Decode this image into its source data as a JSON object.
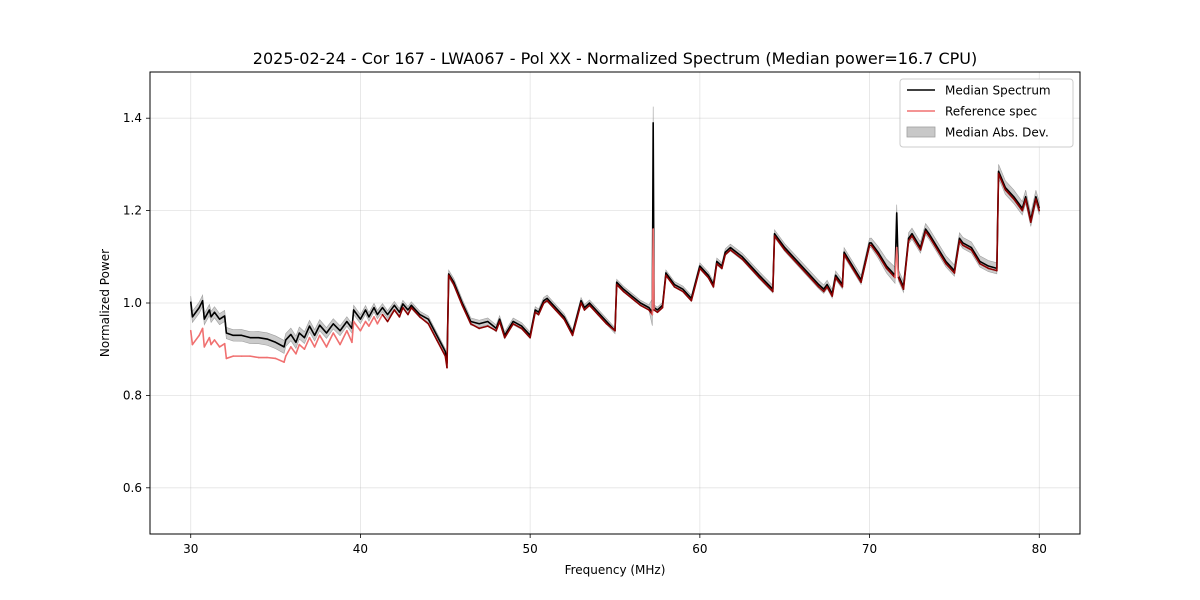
{
  "chart_data": {
    "type": "line",
    "title": "2025-02-24 - Cor 167 - LWA067 - Pol XX - Normalized Spectrum (Median power=16.7 CPU)",
    "xlabel": "Frequency (MHz)",
    "ylabel": "Normalized Power",
    "xlim": [
      27.6,
      82.4
    ],
    "ylim": [
      0.5,
      1.5
    ],
    "xticks": [
      30,
      40,
      50,
      60,
      70,
      80
    ],
    "yticks": [
      0.6,
      0.8,
      1.0,
      1.2,
      1.4
    ],
    "xtick_labels": [
      "30",
      "40",
      "50",
      "60",
      "70",
      "80"
    ],
    "ytick_labels": [
      "0.6",
      "0.8",
      "1.0",
      "1.2",
      "1.4"
    ],
    "grid": true,
    "legend_position": "top-right",
    "legend": [
      "Median Spectrum",
      "Reference spec",
      "Median Abs. Dev."
    ],
    "colors": {
      "median": "#000000",
      "reference": "#f07070",
      "reference_overlap": "#8b0000",
      "mad_band": "#c8c8c8"
    },
    "series": [
      {
        "name": "Median Spectrum",
        "x": [
          30.0,
          30.1,
          30.5,
          30.7,
          30.8,
          31.1,
          31.2,
          31.4,
          31.7,
          32.0,
          32.1,
          32.5,
          33.0,
          33.5,
          34.0,
          34.5,
          35.0,
          35.5,
          35.6,
          35.9,
          36.2,
          36.4,
          36.7,
          37.0,
          37.3,
          37.6,
          38.0,
          38.4,
          38.8,
          39.2,
          39.5,
          39.6,
          40.0,
          40.3,
          40.5,
          40.8,
          41.0,
          41.3,
          41.6,
          42.0,
          42.3,
          42.5,
          42.8,
          43.0,
          43.5,
          44.0,
          44.5,
          45.0,
          45.1,
          45.2,
          45.5,
          46.0,
          46.5,
          47.0,
          47.5,
          48.0,
          48.2,
          48.5,
          49.0,
          49.5,
          50.0,
          50.3,
          50.5,
          50.8,
          51.0,
          51.5,
          52.0,
          52.5,
          53.0,
          53.2,
          53.5,
          54.0,
          54.5,
          55.0,
          55.1,
          55.5,
          56.0,
          56.5,
          57.0,
          57.2,
          57.25,
          57.3,
          57.5,
          57.8,
          58.0,
          58.5,
          59.0,
          59.5,
          60.0,
          60.5,
          60.8,
          61.0,
          61.3,
          61.5,
          61.8,
          62.5,
          63.5,
          64.3,
          64.4,
          65.0,
          66.0,
          67.0,
          67.3,
          67.5,
          67.8,
          68.0,
          68.4,
          68.5,
          69.0,
          69.5,
          70.0,
          70.1,
          70.5,
          71.0,
          71.5,
          71.6,
          71.7,
          72.0,
          72.3,
          72.5,
          73.0,
          73.3,
          73.5,
          74.0,
          74.5,
          75.0,
          75.3,
          75.5,
          76.0,
          76.5,
          77.0,
          77.5,
          77.6,
          78.0,
          78.5,
          79.0,
          79.2,
          79.5,
          79.8,
          80.0
        ],
        "values": [
          1.003,
          0.97,
          0.99,
          1.005,
          0.965,
          0.985,
          0.97,
          0.98,
          0.965,
          0.972,
          0.935,
          0.93,
          0.93,
          0.925,
          0.925,
          0.922,
          0.915,
          0.905,
          0.92,
          0.932,
          0.915,
          0.935,
          0.925,
          0.95,
          0.93,
          0.952,
          0.935,
          0.955,
          0.94,
          0.96,
          0.945,
          0.985,
          0.965,
          0.985,
          0.97,
          0.99,
          0.975,
          0.99,
          0.975,
          0.995,
          0.98,
          0.998,
          0.985,
          0.995,
          0.975,
          0.965,
          0.93,
          0.895,
          0.87,
          1.063,
          1.045,
          1.0,
          0.96,
          0.955,
          0.96,
          0.945,
          0.965,
          0.93,
          0.96,
          0.95,
          0.93,
          0.985,
          0.98,
          1.005,
          1.01,
          0.99,
          0.97,
          0.935,
          1.005,
          0.99,
          1.0,
          0.98,
          0.96,
          0.94,
          1.045,
          1.03,
          1.015,
          1.0,
          0.99,
          0.98,
          1.39,
          0.99,
          0.985,
          0.995,
          1.065,
          1.04,
          1.03,
          1.01,
          1.08,
          1.06,
          1.04,
          1.09,
          1.08,
          1.11,
          1.12,
          1.1,
          1.06,
          1.03,
          1.15,
          1.12,
          1.08,
          1.04,
          1.03,
          1.04,
          1.02,
          1.06,
          1.04,
          1.11,
          1.08,
          1.05,
          1.13,
          1.13,
          1.11,
          1.08,
          1.06,
          1.195,
          1.06,
          1.035,
          1.14,
          1.15,
          1.12,
          1.16,
          1.15,
          1.12,
          1.09,
          1.07,
          1.14,
          1.13,
          1.12,
          1.09,
          1.08,
          1.075,
          1.285,
          1.25,
          1.23,
          1.205,
          1.23,
          1.18,
          1.23,
          1.205
        ]
      },
      {
        "name": "Reference spec",
        "x": [
          30.0,
          30.1,
          30.5,
          30.7,
          30.8,
          31.1,
          31.2,
          31.4,
          31.7,
          32.0,
          32.1,
          32.5,
          33.0,
          33.5,
          34.0,
          34.5,
          35.0,
          35.5,
          35.6,
          35.9,
          36.2,
          36.4,
          36.7,
          37.0,
          37.3,
          37.6,
          38.0,
          38.4,
          38.8,
          39.2,
          39.5,
          39.6,
          40.0,
          40.3,
          40.5,
          40.8,
          41.0,
          41.3,
          41.6,
          42.0,
          42.3,
          42.5,
          42.8,
          43.0,
          43.5,
          44.0,
          44.5,
          45.0,
          45.1,
          45.2,
          45.5,
          46.0,
          46.5,
          47.0,
          47.5,
          48.0,
          48.2,
          48.5,
          49.0,
          49.5,
          50.0,
          50.3,
          50.5,
          50.8,
          51.0,
          51.5,
          52.0,
          52.5,
          53.0,
          53.2,
          53.5,
          54.0,
          54.5,
          55.0,
          55.1,
          55.5,
          56.0,
          56.5,
          57.0,
          57.2,
          57.25,
          57.3,
          57.5,
          57.8,
          58.0,
          58.5,
          59.0,
          59.5,
          60.0,
          60.5,
          60.8,
          61.0,
          61.3,
          61.5,
          61.8,
          62.5,
          63.5,
          64.3,
          64.4,
          65.0,
          66.0,
          67.0,
          67.3,
          67.5,
          67.8,
          68.0,
          68.4,
          68.5,
          69.0,
          69.5,
          70.0,
          70.1,
          70.5,
          71.0,
          71.5,
          71.6,
          71.7,
          72.0,
          72.3,
          72.5,
          73.0,
          73.3,
          73.5,
          74.0,
          74.5,
          75.0,
          75.3,
          75.5,
          76.0,
          76.5,
          77.0,
          77.5,
          77.6,
          78.0,
          78.5,
          79.0,
          79.2,
          79.5,
          79.8,
          80.0
        ],
        "values": [
          0.94,
          0.91,
          0.93,
          0.945,
          0.905,
          0.925,
          0.91,
          0.92,
          0.905,
          0.912,
          0.88,
          0.885,
          0.885,
          0.885,
          0.882,
          0.882,
          0.88,
          0.872,
          0.885,
          0.905,
          0.89,
          0.91,
          0.9,
          0.925,
          0.905,
          0.93,
          0.905,
          0.935,
          0.91,
          0.94,
          0.915,
          0.96,
          0.94,
          0.96,
          0.95,
          0.97,
          0.955,
          0.975,
          0.96,
          0.985,
          0.97,
          0.99,
          0.975,
          0.99,
          0.97,
          0.955,
          0.92,
          0.885,
          0.86,
          1.06,
          1.04,
          0.995,
          0.955,
          0.945,
          0.95,
          0.94,
          0.96,
          0.925,
          0.955,
          0.945,
          0.925,
          0.98,
          0.975,
          1.0,
          1.005,
          0.985,
          0.965,
          0.93,
          1.0,
          0.985,
          0.995,
          0.975,
          0.955,
          0.94,
          1.04,
          1.025,
          1.01,
          0.995,
          0.985,
          0.975,
          1.16,
          0.985,
          0.98,
          0.99,
          1.06,
          1.035,
          1.025,
          1.005,
          1.075,
          1.055,
          1.035,
          1.085,
          1.075,
          1.105,
          1.115,
          1.095,
          1.055,
          1.025,
          1.145,
          1.115,
          1.075,
          1.035,
          1.025,
          1.035,
          1.015,
          1.055,
          1.035,
          1.105,
          1.075,
          1.045,
          1.125,
          1.125,
          1.105,
          1.075,
          1.055,
          1.12,
          1.055,
          1.03,
          1.135,
          1.145,
          1.115,
          1.155,
          1.145,
          1.115,
          1.085,
          1.065,
          1.135,
          1.125,
          1.115,
          1.085,
          1.075,
          1.07,
          1.28,
          1.245,
          1.225,
          1.2,
          1.225,
          1.175,
          1.225,
          1.2
        ]
      }
    ],
    "mad_band": {
      "name": "Median Abs. Dev.",
      "x": [
        30.0,
        32.0,
        35.5,
        39.5,
        45.1,
        45.2,
        57.0,
        57.25,
        57.3,
        70.0,
        71.6,
        71.7,
        77.5,
        77.6,
        80.0
      ],
      "half_width": [
        0.012,
        0.012,
        0.014,
        0.01,
        0.006,
        0.008,
        0.006,
        0.035,
        0.006,
        0.01,
        0.018,
        0.012,
        0.012,
        0.015,
        0.014
      ]
    }
  }
}
